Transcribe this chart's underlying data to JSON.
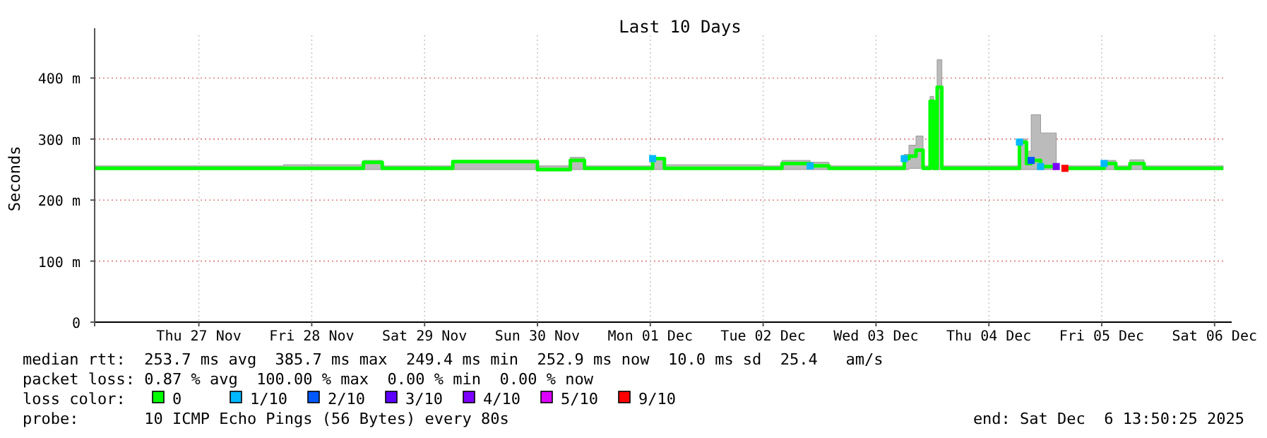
{
  "chart_data": {
    "type": "step",
    "title": "Last 10 Days",
    "ylabel": "Seconds",
    "legend_title": "loss color:",
    "legend": "bottom",
    "grid": true,
    "xlim": [
      "2025-11-26T13:50",
      "2025-12-06T13:50"
    ],
    "xticks": [
      {
        "value": "2025-11-27T12:00",
        "label": "Thu 27 Nov"
      },
      {
        "value": "2025-11-28T12:00",
        "label": "Fri 28 Nov"
      },
      {
        "value": "2025-11-29T12:00",
        "label": "Sat 29 Nov"
      },
      {
        "value": "2025-11-30T12:00",
        "label": "Sun 30 Nov"
      },
      {
        "value": "2025-12-01T12:00",
        "label": "Mon 01 Dec"
      },
      {
        "value": "2025-12-02T12:00",
        "label": "Tue 02 Dec"
      },
      {
        "value": "2025-12-03T12:00",
        "label": "Wed 03 Dec"
      },
      {
        "value": "2025-12-04T12:00",
        "label": "Thu 04 Dec"
      },
      {
        "value": "2025-12-05T12:00",
        "label": "Fri 05 Dec"
      },
      {
        "value": "2025-12-06T12:00",
        "label": "Sat 06 Dec"
      }
    ],
    "ylim": [
      0,
      470
    ],
    "yticks": [
      0,
      {
        "value": 100,
        "label": "100 m"
      },
      {
        "value": 200,
        "label": "200 m"
      },
      {
        "value": 300,
        "label": "300 m"
      },
      {
        "value": 400,
        "label": "400 m"
      }
    ],
    "x": [
      "2025-11-26T14:00",
      "2025-11-27T12:00",
      "2025-11-28T06:00",
      "2025-11-28T23:00",
      "2025-11-29T03:00",
      "2025-11-29T15:00",
      "2025-11-29T18:00",
      "2025-11-30T12:00",
      "2025-11-30T19:00",
      "2025-11-30T22:00",
      "2025-12-01T10:00",
      "2025-12-01T12:30",
      "2025-12-01T15:00",
      "2025-12-02T12:00",
      "2025-12-02T16:00",
      "2025-12-02T22:00",
      "2025-12-03T02:00",
      "2025-12-03T16:00",
      "2025-12-03T18:00",
      "2025-12-03T19:00",
      "2025-12-03T20:30",
      "2025-12-03T22:00",
      "2025-12-03T23:30",
      "2025-12-04T00:15",
      "2025-12-04T01:00",
      "2025-12-04T02:00",
      "2025-12-04T18:00",
      "2025-12-04T18:30",
      "2025-12-04T20:00",
      "2025-12-04T21:00",
      "2025-12-04T23:00",
      "2025-12-05T02:20",
      "2025-12-05T03:00",
      "2025-12-05T04:10",
      "2025-12-05T06:00",
      "2025-12-05T12:30",
      "2025-12-05T15:00",
      "2025-12-05T18:00",
      "2025-12-05T21:00",
      "2025-12-06T13:50"
    ],
    "series": [
      {
        "name": "0",
        "color": "#00ff00",
        "values": [
          252,
          252,
          252,
          262,
          252,
          252,
          263,
          250,
          265,
          252,
          252,
          268,
          252,
          252,
          260,
          256,
          252,
          252,
          268,
          272,
          282,
          252,
          362,
          252,
          385,
          252,
          252,
          295,
          260,
          265,
          255,
          255,
          null,
          252,
          252,
          260,
          252,
          260,
          252,
          252
        ],
        "lower": [
          250,
          250,
          250,
          250,
          250,
          250,
          250,
          248,
          250,
          250,
          250,
          250,
          250,
          250,
          250,
          250,
          250,
          250,
          250,
          252,
          252,
          250,
          250,
          250,
          250,
          250,
          250,
          250,
          250,
          250,
          250,
          250,
          null,
          250,
          250,
          250,
          250,
          250,
          250,
          250
        ],
        "upper": [
          256,
          256,
          258,
          265,
          256,
          256,
          265,
          256,
          270,
          256,
          256,
          270,
          258,
          256,
          265,
          262,
          256,
          256,
          275,
          290,
          305,
          256,
          370,
          256,
          430,
          256,
          256,
          300,
          280,
          340,
          310,
          300,
          null,
          256,
          256,
          265,
          256,
          266,
          256,
          256
        ]
      },
      {
        "name": "1/10",
        "color": "#00b8ff",
        "type": "scatter",
        "marker": "square",
        "values": [
          null,
          null,
          null,
          null,
          null,
          null,
          null,
          null,
          null,
          null,
          null,
          268,
          null,
          null,
          null,
          256,
          null,
          null,
          268,
          null,
          null,
          null,
          null,
          null,
          null,
          null,
          null,
          295,
          null,
          null,
          255,
          null,
          null,
          null,
          null,
          260,
          null,
          null,
          null,
          null
        ]
      },
      {
        "name": "2/10",
        "color": "#0059ff",
        "type": "scatter",
        "marker": "square",
        "values": [
          null,
          null,
          null,
          null,
          null,
          null,
          null,
          null,
          null,
          null,
          null,
          null,
          null,
          null,
          null,
          null,
          null,
          null,
          null,
          null,
          null,
          null,
          null,
          null,
          null,
          null,
          null,
          null,
          null,
          265,
          null,
          null,
          null,
          null,
          null,
          null,
          null,
          null,
          null,
          null
        ]
      },
      {
        "name": "3/10",
        "color": "#5e00ff",
        "type": "scatter",
        "marker": "square",
        "values": [
          null,
          null,
          null,
          null,
          null,
          null,
          null,
          null,
          null,
          null,
          null,
          null,
          null,
          null,
          null,
          null,
          null,
          null,
          null,
          null,
          null,
          null,
          null,
          null,
          null,
          null,
          null,
          null,
          null,
          null,
          null,
          null,
          null,
          null,
          null,
          null,
          null,
          null,
          null,
          null
        ]
      },
      {
        "name": "4/10",
        "color": "#7e00ff",
        "type": "scatter",
        "marker": "square",
        "values": [
          null,
          null,
          null,
          null,
          null,
          null,
          null,
          null,
          null,
          null,
          null,
          null,
          null,
          null,
          null,
          null,
          null,
          null,
          null,
          null,
          null,
          null,
          null,
          null,
          null,
          null,
          null,
          null,
          null,
          null,
          null,
          255,
          null,
          null,
          null,
          null,
          null,
          null,
          null,
          null
        ]
      },
      {
        "name": "5/10",
        "color": "#dd00ff",
        "type": "scatter",
        "marker": "square",
        "values": [
          null,
          null,
          null,
          null,
          null,
          null,
          null,
          null,
          null,
          null,
          null,
          null,
          null,
          null,
          null,
          null,
          null,
          null,
          null,
          null,
          null,
          null,
          null,
          null,
          null,
          null,
          null,
          null,
          null,
          null,
          null,
          null,
          null,
          null,
          null,
          null,
          null,
          null,
          null,
          null
        ]
      },
      {
        "name": "9/10",
        "color": "#ff0000",
        "type": "scatter",
        "marker": "square",
        "values": [
          null,
          null,
          null,
          null,
          null,
          null,
          null,
          null,
          null,
          null,
          null,
          null,
          null,
          null,
          null,
          null,
          null,
          null,
          null,
          null,
          null,
          null,
          null,
          null,
          null,
          null,
          null,
          null,
          null,
          null,
          null,
          null,
          null,
          252,
          null,
          null,
          null,
          null,
          null,
          null
        ]
      }
    ],
    "annotations": [
      "median rtt:  253.7 ms avg  385.7 ms max  249.4 ms min  252.9 ms now  10.0 ms sd  25.4   am/s",
      "packet loss: 0.87 % avg  100.00 % max  0.00 % min  0.00 % now",
      "probe:       10 ICMP Echo Pings (56 Bytes) every 80s",
      "end: Sat Dec  6 13:50:25 2025"
    ]
  }
}
